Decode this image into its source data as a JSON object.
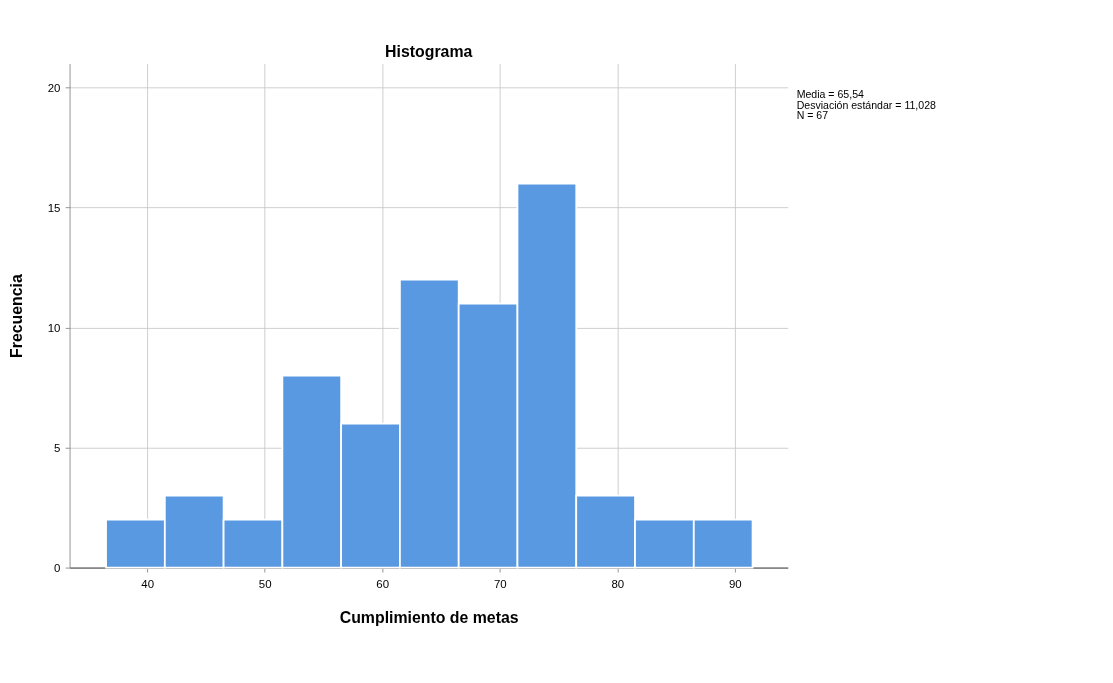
{
  "chart_data": {
    "type": "histogram",
    "title": "Histograma",
    "xlabel": "Cumplimiento de metas",
    "ylabel": "Frecuencia",
    "bins": [
      36.5,
      41.5,
      46.5,
      51.5,
      56.5,
      61.5,
      66.5,
      71.5,
      76.5,
      81.5,
      86.5,
      91.5
    ],
    "values": [
      2,
      3,
      2,
      8,
      6,
      12,
      11,
      16,
      3,
      2,
      2
    ],
    "color": "#5899e2",
    "xlim": [
      33.4,
      94.5
    ],
    "xticks": [
      40,
      50,
      60,
      70,
      80,
      90
    ],
    "ylim": [
      0,
      21
    ],
    "yticks": [
      0,
      5,
      10,
      15,
      20
    ],
    "grid": true,
    "annotations": [
      "Media = 65,54",
      "Desviación estándar = 11,028",
      "N = 67"
    ]
  }
}
